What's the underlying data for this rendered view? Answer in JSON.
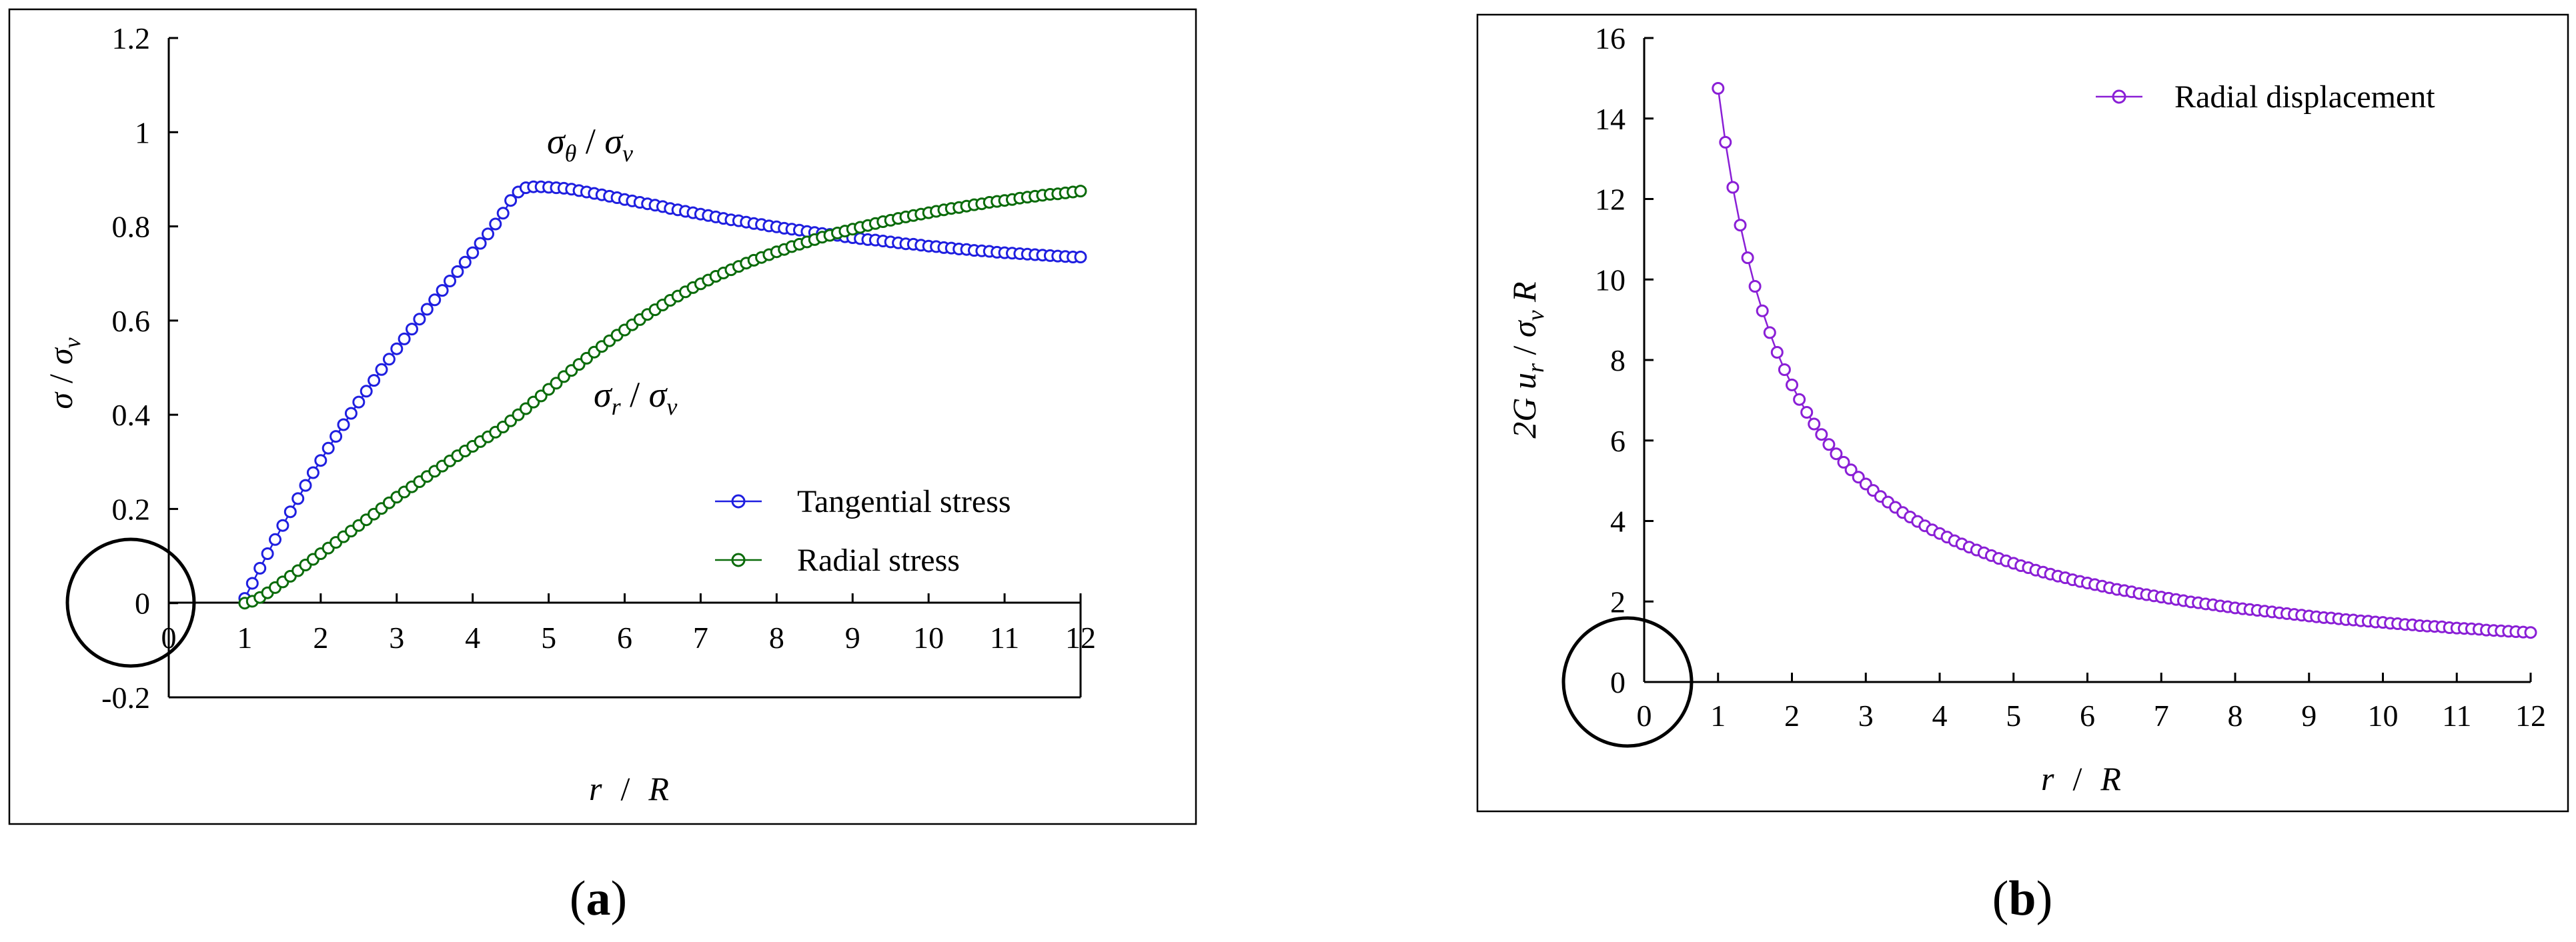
{
  "colors": {
    "tangential": "#1f1fe0",
    "radial": "#0a6b0a",
    "displacement": "#8a1fd6",
    "axis": "#000000"
  },
  "panel_labels": {
    "a_text": "a",
    "a_open": "(",
    "a_close": ")",
    "b_text": "b",
    "b_open": "(",
    "b_close": ")"
  },
  "chart_a": {
    "x_axis_prefix": "r",
    "x_axis_sep": "/",
    "x_axis_suffix": "R",
    "y_axis_sigma": "σ",
    "y_axis_sep": "/",
    "y_axis_sigma2": "σ",
    "y_axis_sub": "v",
    "annot_theta_sigma": "σ",
    "annot_theta_sub": "θ",
    "annot_theta_sep": " / ",
    "annot_theta_sigma2": "σ",
    "annot_theta_sub2": "v",
    "annot_r_sigma": "σ",
    "annot_r_sub": "r",
    "annot_r_sep": " / ",
    "annot_r_sigma2": "σ",
    "annot_r_sub2": "v"
  },
  "chart_b": {
    "x_axis_prefix": "r",
    "x_axis_sep": "/",
    "x_axis_suffix": "R",
    "y_axis_prefix": "2G u",
    "y_axis_sub": "r",
    "y_axis_sep": " / ",
    "y_axis_sigma": "σ",
    "y_axis_sub2": "v",
    "y_axis_suffix": " R"
  },
  "chart_data": [
    {
      "type": "scatter",
      "title": "",
      "xlabel": "r / R",
      "ylabel": "σ / σv",
      "xlim": [
        0,
        12
      ],
      "ylim": [
        -0.2,
        1.2
      ],
      "x_ticks": [
        0,
        1,
        2,
        3,
        4,
        5,
        6,
        7,
        8,
        9,
        10,
        11,
        12
      ],
      "y_ticks": [
        -0.2,
        0,
        0.2,
        0.4,
        0.6,
        0.8,
        1,
        1.2
      ],
      "x_tick_labels": [
        "0",
        "1",
        "2",
        "3",
        "4",
        "5",
        "6",
        "7",
        "8",
        "9",
        "10",
        "11",
        "12"
      ],
      "y_tick_labels": [
        "-0.2",
        "0",
        "0.2",
        "0.4",
        "0.6",
        "0.8",
        "1",
        "1.2"
      ],
      "legend": [
        "Tangential stress",
        "Radial stress"
      ],
      "legend_position": "right-middle",
      "marker": "circle-open",
      "series": [
        {
          "name": "Tangential stress",
          "color_key": "tangential",
          "x": [
            1,
            1.1,
            1.2,
            1.3,
            1.4,
            1.5,
            1.6,
            1.7,
            1.8,
            1.9,
            2,
            2.1,
            2.2,
            2.3,
            2.4,
            2.5,
            2.6,
            2.7,
            2.8,
            2.9,
            3,
            3.1,
            3.2,
            3.3,
            3.4,
            3.5,
            3.6,
            3.7,
            3.8,
            3.9,
            4,
            4.1,
            4.2,
            4.3,
            4.4,
            4.5,
            4.6,
            4.7,
            4.8,
            4.9,
            5,
            5.1,
            5.2,
            5.3,
            5.4,
            5.5,
            5.6,
            5.7,
            5.8,
            5.9,
            6,
            6.1,
            6.2,
            6.3,
            6.4,
            6.5,
            6.6,
            6.7,
            6.8,
            6.9,
            7,
            7.1,
            7.2,
            7.3,
            7.4,
            7.5,
            7.6,
            7.7,
            7.8,
            7.9,
            8,
            8.1,
            8.2,
            8.3,
            8.4,
            8.5,
            8.6,
            8.7,
            8.8,
            8.9,
            9,
            9.1,
            9.2,
            9.3,
            9.4,
            9.5,
            9.6,
            9.7,
            9.8,
            9.9,
            10,
            10.1,
            10.2,
            10.3,
            10.4,
            10.5,
            10.6,
            10.7,
            10.8,
            10.9,
            11,
            11.1,
            11.2,
            11.3,
            11.4,
            11.5,
            11.6,
            11.7,
            11.8,
            11.9,
            12
          ],
          "values": [
            0.01,
            0.042,
            0.074,
            0.105,
            0.135,
            0.165,
            0.194,
            0.222,
            0.25,
            0.277,
            0.303,
            0.329,
            0.354,
            0.379,
            0.403,
            0.427,
            0.45,
            0.473,
            0.496,
            0.518,
            0.54,
            0.561,
            0.582,
            0.603,
            0.624,
            0.644,
            0.664,
            0.684,
            0.704,
            0.724,
            0.744,
            0.764,
            0.784,
            0.805,
            0.828,
            0.855,
            0.873,
            0.882,
            0.884,
            0.884,
            0.883,
            0.882,
            0.881,
            0.879,
            0.876,
            0.873,
            0.87,
            0.867,
            0.864,
            0.861,
            0.857,
            0.854,
            0.851,
            0.848,
            0.845,
            0.842,
            0.838,
            0.835,
            0.832,
            0.829,
            0.826,
            0.823,
            0.82,
            0.817,
            0.814,
            0.812,
            0.809,
            0.806,
            0.804,
            0.801,
            0.799,
            0.796,
            0.794,
            0.792,
            0.789,
            0.787,
            0.785,
            0.783,
            0.781,
            0.778,
            0.776,
            0.774,
            0.772,
            0.771,
            0.769,
            0.767,
            0.765,
            0.763,
            0.762,
            0.76,
            0.758,
            0.757,
            0.755,
            0.754,
            0.752,
            0.751,
            0.749,
            0.748,
            0.747,
            0.745,
            0.744,
            0.743,
            0.742,
            0.741,
            0.74,
            0.739,
            0.738,
            0.737,
            0.736,
            0.735,
            0.735
          ]
        },
        {
          "name": "Radial stress",
          "color_key": "radial",
          "x": [
            1,
            1.1,
            1.2,
            1.3,
            1.4,
            1.5,
            1.6,
            1.7,
            1.8,
            1.9,
            2,
            2.1,
            2.2,
            2.3,
            2.4,
            2.5,
            2.6,
            2.7,
            2.8,
            2.9,
            3,
            3.1,
            3.2,
            3.3,
            3.4,
            3.5,
            3.6,
            3.7,
            3.8,
            3.9,
            4,
            4.1,
            4.2,
            4.3,
            4.4,
            4.5,
            4.6,
            4.7,
            4.8,
            4.9,
            5,
            5.1,
            5.2,
            5.3,
            5.4,
            5.5,
            5.6,
            5.7,
            5.8,
            5.9,
            6,
            6.1,
            6.2,
            6.3,
            6.4,
            6.5,
            6.6,
            6.7,
            6.8,
            6.9,
            7,
            7.1,
            7.2,
            7.3,
            7.4,
            7.5,
            7.6,
            7.7,
            7.8,
            7.9,
            8,
            8.1,
            8.2,
            8.3,
            8.4,
            8.5,
            8.6,
            8.7,
            8.8,
            8.9,
            9,
            9.1,
            9.2,
            9.3,
            9.4,
            9.5,
            9.6,
            9.7,
            9.8,
            9.9,
            10,
            10.1,
            10.2,
            10.3,
            10.4,
            10.5,
            10.6,
            10.7,
            10.8,
            10.9,
            11,
            11.1,
            11.2,
            11.3,
            11.4,
            11.5,
            11.6,
            11.7,
            11.8,
            11.9,
            12
          ],
          "values": [
            0,
            0.004,
            0.012,
            0.022,
            0.033,
            0.045,
            0.057,
            0.069,
            0.081,
            0.093,
            0.105,
            0.117,
            0.129,
            0.141,
            0.153,
            0.165,
            0.177,
            0.189,
            0.201,
            0.213,
            0.225,
            0.236,
            0.247,
            0.258,
            0.269,
            0.28,
            0.291,
            0.302,
            0.313,
            0.323,
            0.333,
            0.343,
            0.353,
            0.363,
            0.374,
            0.387,
            0.4,
            0.413,
            0.427,
            0.44,
            0.454,
            0.467,
            0.481,
            0.494,
            0.507,
            0.52,
            0.533,
            0.545,
            0.557,
            0.569,
            0.58,
            0.591,
            0.602,
            0.613,
            0.623,
            0.633,
            0.643,
            0.652,
            0.661,
            0.67,
            0.678,
            0.686,
            0.694,
            0.701,
            0.708,
            0.715,
            0.722,
            0.728,
            0.734,
            0.74,
            0.746,
            0.751,
            0.757,
            0.762,
            0.767,
            0.772,
            0.777,
            0.781,
            0.786,
            0.79,
            0.794,
            0.798,
            0.802,
            0.806,
            0.81,
            0.813,
            0.817,
            0.82,
            0.823,
            0.826,
            0.829,
            0.832,
            0.835,
            0.838,
            0.84,
            0.843,
            0.846,
            0.848,
            0.851,
            0.853,
            0.855,
            0.857,
            0.86,
            0.862,
            0.864,
            0.866,
            0.868,
            0.869,
            0.871,
            0.873,
            0.875
          ]
        }
      ],
      "annotations": [
        "σθ / σv",
        "σr / σv"
      ]
    },
    {
      "type": "scatter",
      "title": "",
      "xlabel": "r / R",
      "ylabel": "2G ur / σv R",
      "xlim": [
        0,
        12
      ],
      "ylim": [
        0,
        16
      ],
      "x_ticks": [
        0,
        1,
        2,
        3,
        4,
        5,
        6,
        7,
        8,
        9,
        10,
        11,
        12
      ],
      "y_ticks": [
        0,
        2,
        4,
        6,
        8,
        10,
        12,
        14,
        16
      ],
      "x_tick_labels": [
        "0",
        "1",
        "2",
        "3",
        "4",
        "5",
        "6",
        "7",
        "8",
        "9",
        "10",
        "11",
        "12"
      ],
      "y_tick_labels": [
        "0",
        "2",
        "4",
        "6",
        "8",
        "10",
        "12",
        "14",
        "16"
      ],
      "legend": [
        "Radial displacement"
      ],
      "legend_position": "top-right",
      "marker": "circle-open",
      "series": [
        {
          "name": "Radial displacement",
          "color_key": "displacement",
          "x": [
            1,
            1.1,
            1.2,
            1.3,
            1.4,
            1.5,
            1.6,
            1.7,
            1.8,
            1.9,
            2,
            2.1,
            2.2,
            2.3,
            2.4,
            2.5,
            2.6,
            2.7,
            2.8,
            2.9,
            3,
            3.1,
            3.2,
            3.3,
            3.4,
            3.5,
            3.6,
            3.7,
            3.8,
            3.9,
            4,
            4.1,
            4.2,
            4.3,
            4.4,
            4.5,
            4.6,
            4.7,
            4.8,
            4.9,
            5,
            5.1,
            5.2,
            5.3,
            5.4,
            5.5,
            5.6,
            5.7,
            5.8,
            5.9,
            6,
            6.1,
            6.2,
            6.3,
            6.4,
            6.5,
            6.6,
            6.7,
            6.8,
            6.9,
            7,
            7.1,
            7.2,
            7.3,
            7.4,
            7.5,
            7.6,
            7.7,
            7.8,
            7.9,
            8,
            8.1,
            8.2,
            8.3,
            8.4,
            8.5,
            8.6,
            8.7,
            8.8,
            8.9,
            9,
            9.1,
            9.2,
            9.3,
            9.4,
            9.5,
            9.6,
            9.7,
            9.8,
            9.9,
            10,
            10.1,
            10.2,
            10.3,
            10.4,
            10.5,
            10.6,
            10.7,
            10.8,
            10.9,
            11,
            11.1,
            11.2,
            11.3,
            11.4,
            11.5,
            11.6,
            11.7,
            11.8,
            11.9,
            12
          ],
          "values": [
            14.75,
            13.41,
            12.29,
            11.35,
            10.54,
            9.83,
            9.22,
            8.68,
            8.19,
            7.76,
            7.38,
            7.02,
            6.7,
            6.41,
            6.15,
            5.9,
            5.67,
            5.46,
            5.27,
            5.09,
            4.92,
            4.76,
            4.61,
            4.47,
            4.34,
            4.21,
            4.1,
            3.99,
            3.88,
            3.78,
            3.69,
            3.6,
            3.51,
            3.43,
            3.35,
            3.28,
            3.21,
            3.14,
            3.07,
            3.01,
            2.95,
            2.89,
            2.84,
            2.78,
            2.73,
            2.68,
            2.63,
            2.59,
            2.54,
            2.5,
            2.46,
            2.42,
            2.38,
            2.34,
            2.3,
            2.27,
            2.24,
            2.2,
            2.17,
            2.14,
            2.11,
            2.08,
            2.05,
            2.02,
            1.99,
            1.97,
            1.94,
            1.92,
            1.89,
            1.87,
            1.84,
            1.82,
            1.8,
            1.78,
            1.76,
            1.74,
            1.72,
            1.7,
            1.68,
            1.66,
            1.64,
            1.62,
            1.6,
            1.59,
            1.57,
            1.55,
            1.54,
            1.52,
            1.51,
            1.49,
            1.48,
            1.46,
            1.45,
            1.43,
            1.42,
            1.4,
            1.39,
            1.38,
            1.37,
            1.35,
            1.34,
            1.33,
            1.32,
            1.31,
            1.29,
            1.28,
            1.27,
            1.26,
            1.25,
            1.24,
            1.23
          ]
        }
      ]
    }
  ]
}
